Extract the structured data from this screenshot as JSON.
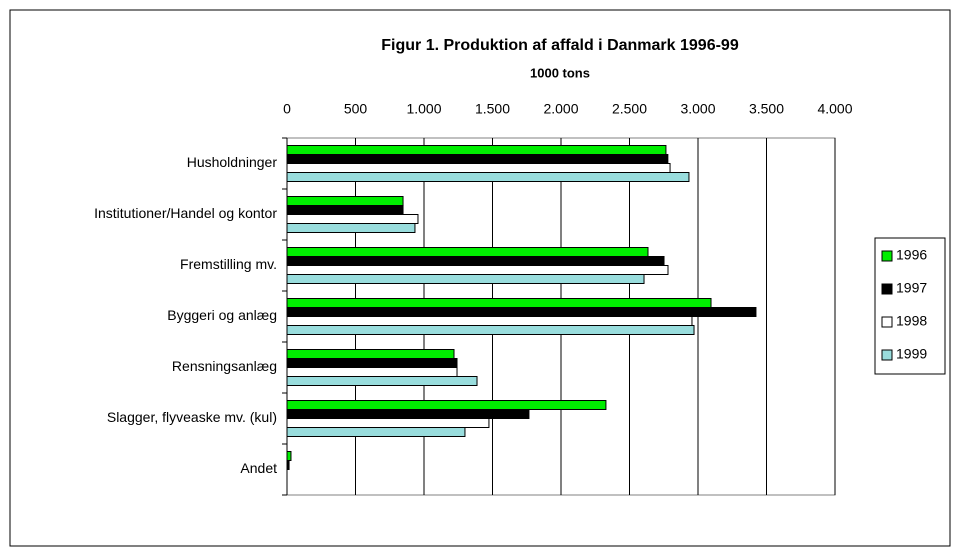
{
  "chart_data": {
    "type": "barh",
    "title": "Figur 1. Produktion af affald i Danmark 1996-99",
    "subtitle": "1000 tons",
    "categories": [
      "Husholdninger",
      "Institutioner/Handel og kontor",
      "Fremstilling mv.",
      "Byggeri og anlæg",
      "Rensningsanlæg",
      "Slagger, flyveaske mv. (kul)",
      "Andet"
    ],
    "series": [
      {
        "name": "1996",
        "color": "#00ee00",
        "values": [
          2766,
          847,
          2635,
          3095,
          1219,
          2328,
          29
        ]
      },
      {
        "name": "1997",
        "color": "#000000",
        "values": [
          2780,
          847,
          2752,
          3423,
          1241,
          1766,
          15
        ]
      },
      {
        "name": "1998",
        "color": "#ffffff",
        "values": [
          2796,
          956,
          2781,
          2956,
          1241,
          1474,
          0
        ]
      },
      {
        "name": "1999",
        "color": "#99dddd",
        "values": [
          2934,
          934,
          2606,
          2971,
          1387,
          1299,
          0
        ]
      }
    ],
    "xlim": [
      0,
      4000
    ],
    "xticks": [
      0,
      500,
      {
        "value": 1000,
        "label": "1.000"
      },
      {
        "value": 1500,
        "label": "1.500"
      },
      {
        "value": 2000,
        "label": "2.000"
      },
      {
        "value": 2500,
        "label": "2.500"
      },
      {
        "value": 3000,
        "label": "3.000"
      },
      {
        "value": 3500,
        "label": "3.500"
      },
      {
        "value": 4000,
        "label": "4.000"
      }
    ],
    "grid": true,
    "legend": "right"
  }
}
